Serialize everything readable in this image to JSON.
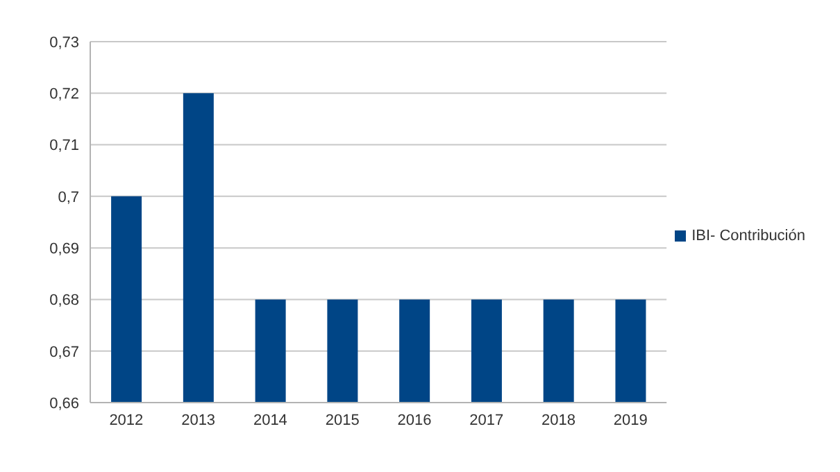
{
  "chart_data": {
    "type": "bar",
    "categories": [
      "2012",
      "2013",
      "2014",
      "2015",
      "2016",
      "2017",
      "2018",
      "2019"
    ],
    "series": [
      {
        "name": "IBI- Contribución",
        "color": "#004586",
        "values": [
          0.7,
          0.72,
          0.68,
          0.68,
          0.68,
          0.68,
          0.68,
          0.68
        ]
      }
    ],
    "ylim": [
      0.66,
      0.73
    ],
    "yticks": [
      {
        "value": 0.66,
        "label": "0,66"
      },
      {
        "value": 0.67,
        "label": "0,67"
      },
      {
        "value": 0.68,
        "label": "0,68"
      },
      {
        "value": 0.69,
        "label": "0,69"
      },
      {
        "value": 0.7,
        "label": "0,7"
      },
      {
        "value": 0.71,
        "label": "0,71"
      },
      {
        "value": 0.72,
        "label": "0,72"
      },
      {
        "value": 0.73,
        "label": "0,73"
      }
    ],
    "grid": "y",
    "legend": "right"
  }
}
